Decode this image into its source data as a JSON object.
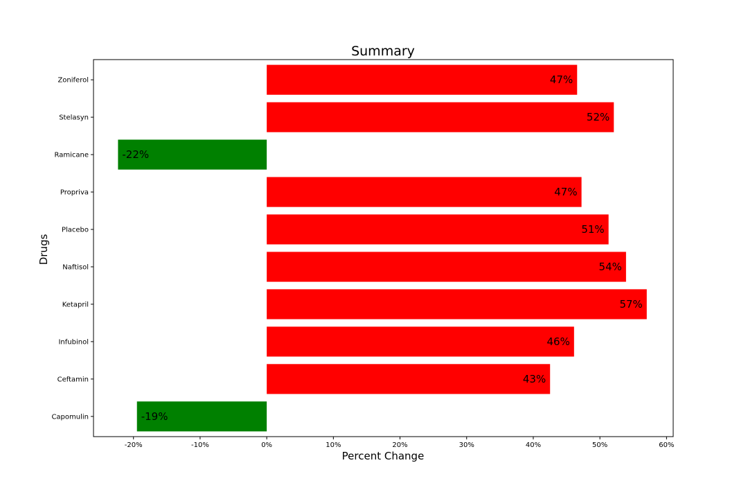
{
  "chart_data": {
    "type": "bar",
    "orientation": "horizontal",
    "title": "Summary",
    "xlabel": "Percent Change",
    "ylabel": "Drugs",
    "categories": [
      "Capomulin",
      "Ceftamin",
      "Infubinol",
      "Ketapril",
      "Naftisol",
      "Placebo",
      "Propriva",
      "Ramicane",
      "Stelasyn",
      "Zoniferol"
    ],
    "values": [
      -19.48,
      42.52,
      46.12,
      57.03,
      53.92,
      51.3,
      47.24,
      -22.32,
      52.09,
      46.58
    ],
    "data_labels": [
      "-19%",
      "43%",
      "46%",
      "57%",
      "54%",
      "51%",
      "47%",
      "-22%",
      "52%",
      "47%"
    ],
    "xlim": [
      -26,
      61
    ],
    "xticks": [
      -20,
      -10,
      0,
      10,
      20,
      30,
      40,
      50,
      60
    ],
    "xtick_labels": [
      "-20%",
      "-10%",
      "0%",
      "10%",
      "20%",
      "30%",
      "40%",
      "50%",
      "60%"
    ],
    "colors": {
      "positive": "#ff0000",
      "negative": "#008000"
    },
    "grid": false,
    "legend": "none"
  }
}
